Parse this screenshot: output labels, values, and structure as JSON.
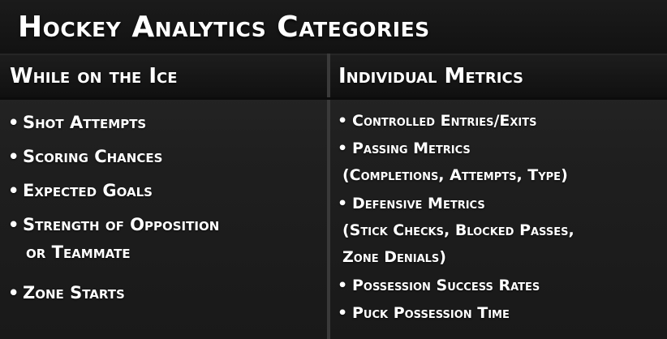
{
  "title": "Hockey Analytics Categories",
  "left_column": {
    "heading": "While on the Ice",
    "bullet": "•",
    "items": [
      {
        "lines": [
          "Shot Attempts"
        ]
      },
      {
        "lines": [
          "Scoring Chances"
        ]
      },
      {
        "lines": [
          "Expected Goals"
        ]
      },
      {
        "lines": [
          "Strength of Opposition",
          "or Teammate"
        ]
      },
      {
        "lines": [
          "Zone Starts"
        ]
      }
    ]
  },
  "right_column": {
    "heading": "Individual Metrics",
    "bullet": "•",
    "items": [
      {
        "lines": [
          "Controlled Entries/Exits"
        ]
      },
      {
        "lines": [
          "Passing Metrics",
          "(Completions, Attempts, Type)"
        ]
      },
      {
        "lines": [
          "Defensive Metrics",
          "(Stick Checks, Blocked Passes,",
          "Zone Denials)"
        ]
      },
      {
        "lines": [
          "Possession Success Rates"
        ]
      },
      {
        "lines": [
          "Puck Possession Time"
        ]
      }
    ]
  }
}
